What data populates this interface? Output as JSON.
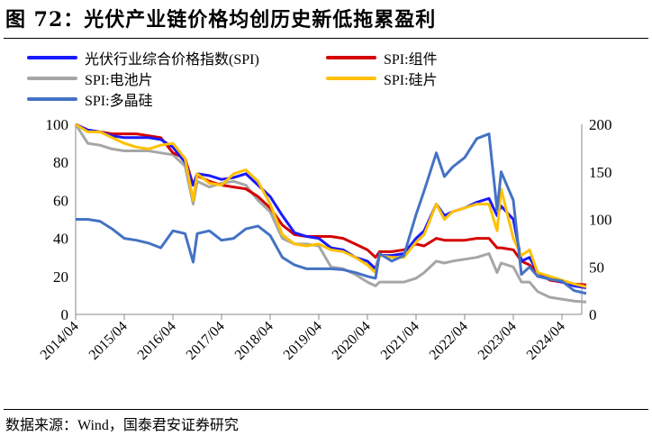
{
  "title": "图 72：光伏产业链价格均创历史新低拖累盈利",
  "source": "数据来源：Wind，国泰君安证券研究",
  "chart_data": {
    "type": "line",
    "title": "图 72：光伏产业链价格均创历史新低拖累盈利",
    "legend_placement": "top",
    "grid": false,
    "y_left": {
      "range": [
        0,
        100
      ],
      "ticks": [
        0,
        20,
        40,
        60,
        80,
        100
      ]
    },
    "y_right": {
      "range": [
        0,
        200
      ],
      "ticks": [
        0,
        50,
        100,
        150,
        200
      ]
    },
    "x_ticks": [
      "2014/04",
      "2015/04",
      "2016/04",
      "2017/04",
      "2018/04",
      "2019/04",
      "2020/04",
      "2021/04",
      "2022/04",
      "2023/04",
      "2024/04"
    ],
    "x": [
      "2014-04",
      "2014-07",
      "2014-10",
      "2015-01",
      "2015-04",
      "2015-07",
      "2015-10",
      "2016-01",
      "2016-04",
      "2016-07",
      "2016-09",
      "2016-10",
      "2017-01",
      "2017-04",
      "2017-07",
      "2017-10",
      "2018-01",
      "2018-04",
      "2018-07",
      "2018-10",
      "2019-01",
      "2019-04",
      "2019-07",
      "2019-10",
      "2020-01",
      "2020-04",
      "2020-06",
      "2020-07",
      "2020-10",
      "2021-01",
      "2021-04",
      "2021-06",
      "2021-09",
      "2021-11",
      "2022-01",
      "2022-04",
      "2022-07",
      "2022-10",
      "2022-12",
      "2023-01",
      "2023-04",
      "2023-06",
      "2023-08",
      "2023-10",
      "2024-01",
      "2024-04",
      "2024-07",
      "2024-10"
    ],
    "series": [
      {
        "name": "光伏行业综合价格指数(SPI)",
        "color": "#1a1aff",
        "axis": "left",
        "values": [
          100,
          97,
          96,
          94,
          93,
          93,
          93,
          92,
          88,
          80,
          68,
          74,
          73,
          71,
          72,
          74,
          68,
          62,
          52,
          43,
          41,
          40,
          35,
          34,
          30,
          28,
          24,
          31,
          31,
          32,
          40,
          44,
          58,
          52,
          54,
          56,
          59,
          61,
          52,
          57,
          50,
          28,
          30,
          22,
          19,
          17,
          15,
          14
        ]
      },
      {
        "name": "SPI:组件",
        "color": "#d40000",
        "axis": "left",
        "values": [
          100,
          97,
          96,
          95,
          95,
          95,
          94,
          93,
          85,
          82,
          68,
          73,
          70,
          68,
          67,
          66,
          62,
          56,
          47,
          42,
          41,
          41,
          41,
          40,
          37,
          34,
          30,
          33,
          33,
          34,
          37,
          36,
          40,
          39,
          39,
          39,
          40,
          40,
          35,
          35,
          34,
          28,
          26,
          22,
          18,
          17,
          16,
          15.5
        ]
      },
      {
        "name": "SPI:电池片",
        "color": "#a6a6a6",
        "axis": "left",
        "values": [
          100,
          90,
          89,
          87,
          86,
          86,
          86,
          85,
          84,
          78,
          58,
          70,
          67,
          69,
          70,
          68,
          60,
          54,
          40,
          37,
          37,
          36,
          25,
          24,
          21,
          17,
          15,
          17,
          17,
          17,
          19,
          22,
          28,
          27,
          28,
          29,
          30,
          32,
          22,
          27,
          25,
          17,
          17,
          12,
          9,
          8,
          7,
          6.5
        ]
      },
      {
        "name": "SPI:硅片",
        "color": "#ffc000",
        "axis": "left",
        "values": [
          100,
          96,
          96,
          93,
          90,
          88,
          87,
          89,
          90,
          82,
          60,
          74,
          69,
          68,
          74,
          76,
          70,
          58,
          42,
          37,
          36,
          37,
          34,
          33,
          30,
          26,
          22,
          31,
          30,
          30,
          38,
          42,
          58,
          50,
          54,
          56,
          58,
          58,
          44,
          66,
          40,
          31,
          34,
          22,
          20,
          18,
          16,
          14.5
        ]
      },
      {
        "name": "SPI:多晶硅",
        "color": "#4472c4",
        "axis": "right",
        "values": [
          100,
          100,
          98,
          90,
          80,
          78,
          75,
          70,
          88,
          85,
          55,
          85,
          88,
          78,
          80,
          90,
          93,
          83,
          60,
          52,
          48,
          48,
          48,
          47,
          44,
          40,
          38,
          64,
          56,
          62,
          105,
          130,
          170,
          145,
          155,
          165,
          185,
          190,
          110,
          150,
          120,
          42,
          50,
          40,
          37,
          35,
          25,
          22
        ]
      }
    ]
  }
}
